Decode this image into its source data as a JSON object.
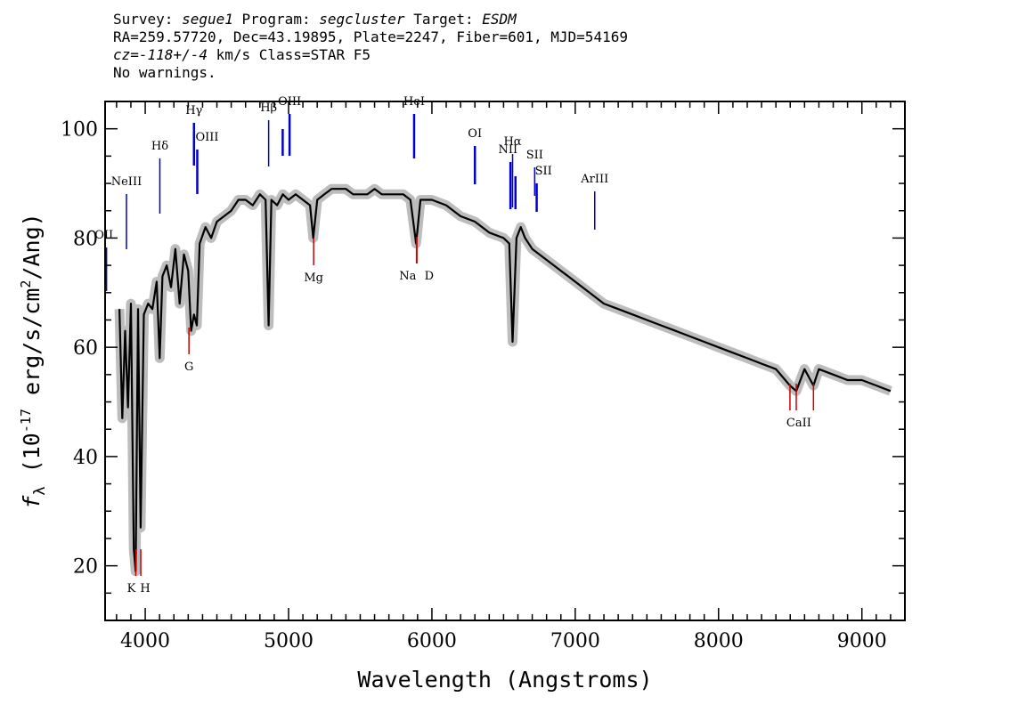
{
  "header": {
    "survey_label": "Survey:",
    "survey": "segue1",
    "program_label": "Program:",
    "program": "segcluster",
    "target_label": "Target:",
    "target": "ESDM",
    "line2": "RA=259.57720, Dec=43.19895, Plate=2247, Fiber=601, MJD=54169",
    "cz_label": "cz=",
    "cz_value": "-118+/-4",
    "cz_rest": " km/s Class=STAR F5",
    "line4": "No warnings."
  },
  "chart_data": {
    "type": "line",
    "title": "",
    "xlabel": "Wavelength (Angstroms)",
    "ylabel": "f_λ (10^-17 erg/s/cm^2/Ang)",
    "xlim": [
      3720,
      9300
    ],
    "ylim": [
      10,
      105
    ],
    "x_ticks": [
      4000,
      5000,
      6000,
      7000,
      8000,
      9000
    ],
    "y_ticks": [
      20,
      40,
      60,
      80,
      100
    ],
    "grid": false,
    "colors": {
      "flux": "#000000",
      "error_band": "#bdbdbd",
      "emission_marker": "#0000cc",
      "absorption_marker": "#cc0000"
    },
    "series": [
      {
        "name": "",
        "x": [
          3820,
          3840,
          3860,
          3880,
          3900,
          3920,
          3933,
          3950,
          3968,
          3990,
          4020,
          4050,
          4080,
          4101,
          4120,
          4150,
          4180,
          4210,
          4240,
          4270,
          4300,
          4320,
          4340,
          4360,
          4380,
          4420,
          4460,
          4500,
          4550,
          4600,
          4650,
          4700,
          4750,
          4800,
          4840,
          4861,
          4880,
          4920,
          4960,
          5000,
          5050,
          5100,
          5150,
          5172,
          5200,
          5250,
          5300,
          5350,
          5400,
          5450,
          5500,
          5550,
          5600,
          5650,
          5700,
          5750,
          5800,
          5850,
          5890,
          5920,
          5960,
          6000,
          6100,
          6200,
          6300,
          6400,
          6500,
          6540,
          6563,
          6590,
          6620,
          6650,
          6700,
          6800,
          6900,
          7000,
          7100,
          7200,
          7300,
          7400,
          7500,
          7600,
          7700,
          7800,
          7900,
          8000,
          8100,
          8200,
          8300,
          8400,
          8498,
          8542,
          8600,
          8662,
          8700,
          8800,
          8900,
          9000,
          9100,
          9200
        ],
        "values": [
          67,
          47,
          63,
          49,
          68,
          23,
          19,
          67,
          27,
          66,
          68,
          67,
          72,
          58,
          73,
          75,
          71,
          78,
          68,
          77,
          74,
          63,
          66,
          64,
          79,
          82,
          80,
          83,
          84,
          85,
          87,
          87,
          86,
          88,
          87,
          64,
          87,
          86,
          88,
          87,
          88,
          87,
          86,
          80,
          87,
          88,
          89,
          89,
          89,
          88,
          88,
          88,
          89,
          88,
          88,
          88,
          88,
          87,
          79,
          87,
          87,
          87,
          86,
          84,
          83,
          81,
          80,
          79,
          61,
          80,
          82,
          80,
          78,
          76,
          74,
          72,
          70,
          68,
          67,
          66,
          65,
          64,
          63,
          62,
          61,
          60,
          59,
          58,
          57,
          56,
          53,
          52,
          56,
          53,
          56,
          55,
          54,
          54,
          53,
          52
        ]
      }
    ],
    "emission_lines": [
      {
        "label": "OII",
        "x": 3727
      },
      {
        "label": "NeIII",
        "x": 3869
      },
      {
        "label": "Hδ",
        "x": 4102
      },
      {
        "label": "Hγ",
        "x": 4340
      },
      {
        "label": "OIII",
        "x": 4363
      },
      {
        "label": "Hβ",
        "x": 4861
      },
      {
        "label": "OIII",
        "x": 4959
      },
      {
        "label": "OIII",
        "x": 5007
      },
      {
        "label": "HeI",
        "x": 5876
      },
      {
        "label": "OI",
        "x": 6300
      },
      {
        "label": "NII",
        "x": 6548
      },
      {
        "label": "Hα",
        "x": 6563
      },
      {
        "label": "NII",
        "x": 6583
      },
      {
        "label": "SII",
        "x": 6717
      },
      {
        "label": "SII",
        "x": 6731
      },
      {
        "label": "ArIII",
        "x": 7136
      }
    ],
    "absorption_lines": [
      {
        "label": "K",
        "x": 3934
      },
      {
        "label": "H",
        "x": 3969
      },
      {
        "label": "G",
        "x": 4305
      },
      {
        "label": "Mg",
        "x": 5175
      },
      {
        "label": "Na",
        "x": 5894
      },
      {
        "label": "D",
        "x": 5894
      },
      {
        "label": "CaII",
        "x": 8498
      },
      {
        "label": "CaII",
        "x": 8542
      },
      {
        "label": "CaII",
        "x": 8662
      }
    ]
  }
}
